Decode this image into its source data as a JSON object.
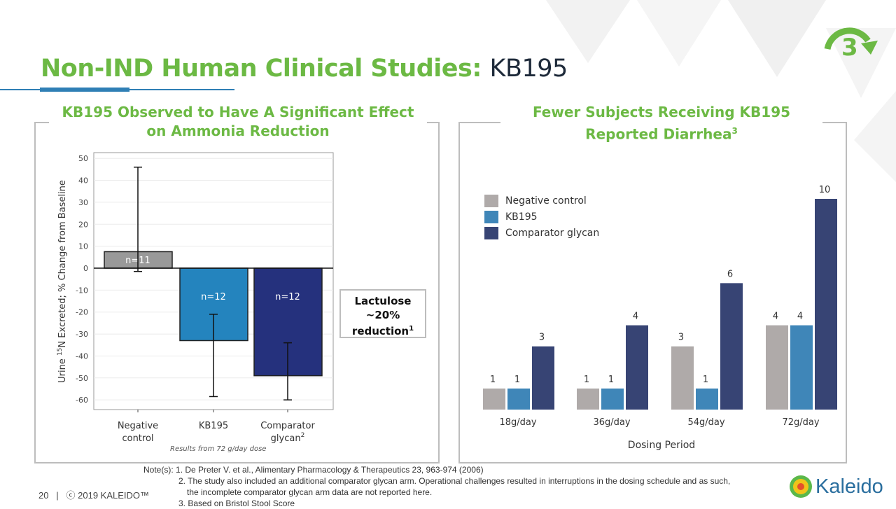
{
  "slide": {
    "title_main": "Non-IND Human Clinical Studies:",
    "title_sub": "KB195",
    "badge_number": "3",
    "page_number": "20",
    "copyright": "ⓒ 2019 KALEIDO™",
    "logo_text": "Kaleido",
    "accent": "#6cb944"
  },
  "left_panel": {
    "title": "KB195 Observed to Have A Significant Effect on Ammonia Reduction",
    "callout_line1": "Lactulose",
    "callout_line2": "~20%",
    "callout_line3": "reduction",
    "callout_sup": "1",
    "caption": "Results from 72 g/day dose"
  },
  "right_panel": {
    "title": "Fewer Subjects Receiving KB195 Reported Diarrhea",
    "title_sup": "3"
  },
  "notes": {
    "label": "Note(s):",
    "items": [
      "1. De Preter V. et al., Alimentary Pharmacology & Therapeutics 23, 963-974 (2006)",
      "2. The study also included an additional comparator glycan arm.  Operational challenges resulted in interruptions in the dosing schedule and as such,",
      "the incomplete comparator glycan arm data are not reported here.",
      "3. Based on Bristol Stool Score"
    ]
  },
  "chart_data": [
    {
      "type": "bar",
      "ylabel_pre": "Urine ",
      "ylabel_sup": "15",
      "ylabel_post": "N Excreted; % Change from Baseline",
      "categories": [
        "Negative control",
        "KB195",
        "Comparator glycan"
      ],
      "category_sup": [
        "",
        "",
        "2"
      ],
      "values": [
        7.5,
        -33,
        -49
      ],
      "error_low": [
        -1.5,
        -58.5,
        -60
      ],
      "error_high": [
        46,
        -21,
        -34
      ],
      "bar_labels": [
        "n=11",
        "n=12",
        "n=12"
      ],
      "colors": [
        "#999999",
        "#2484be",
        "#25317d"
      ],
      "ylim": [
        -65,
        52
      ],
      "yticks": [
        50,
        40,
        30,
        20,
        10,
        0,
        -10,
        -20,
        -30,
        -40,
        -50,
        -60
      ],
      "grid": true
    },
    {
      "type": "bar",
      "xlabel": "Dosing Period",
      "categories": [
        "18g/day",
        "36g/day",
        "54g/day",
        "72g/day"
      ],
      "series": [
        {
          "name": "Negative control",
          "values": [
            1,
            1,
            3,
            4
          ],
          "color": "#afaaa9"
        },
        {
          "name": "KB195",
          "values": [
            1,
            1,
            1,
            4
          ],
          "color": "#3f86b8"
        },
        {
          "name": "Comparator glycan",
          "values": [
            3,
            4,
            6,
            10
          ],
          "color": "#374474"
        }
      ],
      "legend": "top-left",
      "grid": false
    }
  ]
}
